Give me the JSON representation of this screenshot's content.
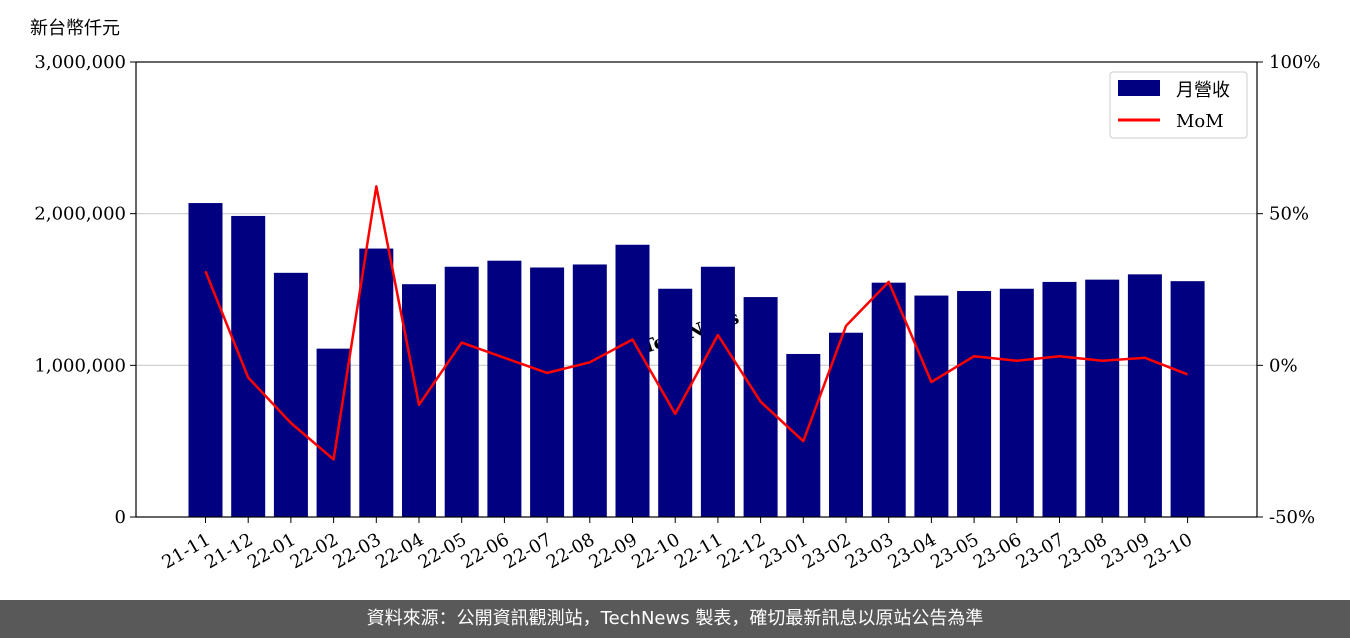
{
  "unit_label": "新台幣仟元",
  "footer_text": "資料來源：公開資訊觀測站，TechNews 製表，確切最新訊息以原站公告為準",
  "watermark_text": "TechNews",
  "colors": {
    "bar": "#000080",
    "line": "#ff0000",
    "footer_bg": "#595959",
    "watermark": "#f3d6d6"
  },
  "chart_data": {
    "type": "bar",
    "categories": [
      "21-11",
      "21-12",
      "22-01",
      "22-02",
      "22-03",
      "22-04",
      "22-05",
      "22-06",
      "22-07",
      "22-08",
      "22-09",
      "22-10",
      "22-11",
      "22-12",
      "23-01",
      "23-02",
      "23-03",
      "23-04",
      "23-05",
      "23-06",
      "23-07",
      "23-08",
      "23-09",
      "23-10"
    ],
    "series": [
      {
        "name": "月營收",
        "type": "bar",
        "axis": "left",
        "values": [
          2070000,
          1985000,
          1610000,
          1110000,
          1770000,
          1535000,
          1650000,
          1690000,
          1645000,
          1665000,
          1795000,
          1505000,
          1650000,
          1450000,
          1075000,
          1215000,
          1545000,
          1460000,
          1490000,
          1505000,
          1550000,
          1565000,
          1600000,
          1555000
        ]
      },
      {
        "name": "MoM",
        "type": "line",
        "axis": "right",
        "values": [
          31,
          -4,
          -19,
          -31,
          59,
          -13,
          7.5,
          2.5,
          -2.5,
          1,
          8.5,
          -16,
          10,
          -12,
          -25,
          13,
          27.5,
          -5.5,
          3,
          1.5,
          3,
          1.5,
          2.5,
          -3
        ]
      }
    ],
    "left_axis": {
      "ylim": [
        0,
        3000000
      ],
      "ticks": [
        "0",
        "1,000,000",
        "2,000,000",
        "3,000,000"
      ]
    },
    "right_axis": {
      "ylim": [
        -50,
        100
      ],
      "ticks": [
        "-50%",
        "0%",
        "50%",
        "100%"
      ]
    },
    "legend": {
      "placement": "top-right",
      "entries": [
        "月營收",
        "MoM"
      ]
    },
    "grid": "horizontal"
  }
}
